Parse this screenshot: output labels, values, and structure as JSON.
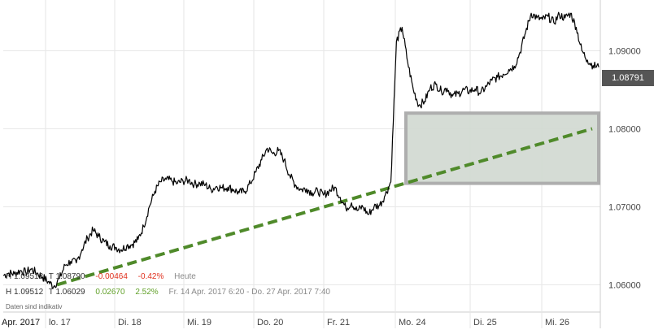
{
  "chart_data": {
    "type": "line",
    "x_ticks": [
      "Apr. 2017",
      "lo. 17",
      "Di. 18",
      "Mi. 19",
      "Do. 20",
      "Fr. 21",
      "Mo. 24",
      "Di. 25",
      "Mi. 26"
    ],
    "y_ticks": [
      "1.09000",
      "1.08000",
      "1.07000",
      "1.06000"
    ],
    "ylim": [
      1.0565,
      1.0965
    ],
    "series": [
      {
        "values": [
          1.0612,
          1.0615,
          1.0614,
          1.0618,
          1.0616,
          1.062,
          1.0615,
          1.061,
          1.0604,
          1.0598,
          1.0608,
          1.0625,
          1.063,
          1.0628,
          1.0645,
          1.066,
          1.067,
          1.0662,
          1.0655,
          1.065,
          1.0648,
          1.0645,
          1.065,
          1.0652,
          1.0658,
          1.0675,
          1.07,
          1.072,
          1.0732,
          1.0735,
          1.0733,
          1.073,
          1.0733,
          1.0734,
          1.0729,
          1.073,
          1.0728,
          1.0722,
          1.0726,
          1.0724,
          1.0725,
          1.0722,
          1.0718,
          1.072,
          1.073,
          1.0745,
          1.076,
          1.0775,
          1.0768,
          1.0772,
          1.076,
          1.074,
          1.0728,
          1.0722,
          1.0723,
          1.0718,
          1.072,
          1.0715,
          1.072,
          1.0725,
          1.0712,
          1.0698,
          1.0705,
          1.0695,
          1.07,
          1.069,
          1.07,
          1.0702,
          1.0715,
          1.0732,
          1.0912,
          1.093,
          1.0885,
          1.085,
          1.083,
          1.0835,
          1.0852,
          1.0857,
          1.0848,
          1.0852,
          1.0842,
          1.0845,
          1.085,
          1.0848,
          1.0851,
          1.0846,
          1.0854,
          1.0862,
          1.0866,
          1.087,
          1.0876,
          1.088,
          1.0898,
          1.0924,
          1.0948,
          1.0942,
          1.094,
          1.0944,
          1.0936,
          1.0946,
          1.0942,
          1.0948,
          1.093,
          1.09,
          1.0888,
          1.0881,
          1.0879
        ]
      }
    ],
    "trend_line": {
      "from": 1.06,
      "to": 1.08,
      "color": "#4f8a2a"
    },
    "highlight_box": {
      "y_from": 1.073,
      "y_to": 1.082,
      "fill": "#d3dbd3",
      "stroke": "#aaaaaa"
    },
    "grid": true,
    "last_price": "1.08791"
  },
  "info": {
    "row1": {
      "high": "H 1.09512",
      "low": "T 1.08790",
      "change": "-0.00464",
      "change_pct": "-0.42%",
      "period": "Heute"
    },
    "row2": {
      "high": "H 1.09512",
      "low": "T 1.06029",
      "change": "0.02670",
      "change_pct": "2.52%",
      "period": "Fr. 14 Apr. 2017 6:20 - Do. 27 Apr. 2017 7:40"
    },
    "note": "Daten sind indikativ"
  },
  "colors": {
    "line": "#000000",
    "grid": "#e6e6e6",
    "axis_text": "#444444",
    "negative": "#e0301e",
    "positive": "#62a12a"
  }
}
